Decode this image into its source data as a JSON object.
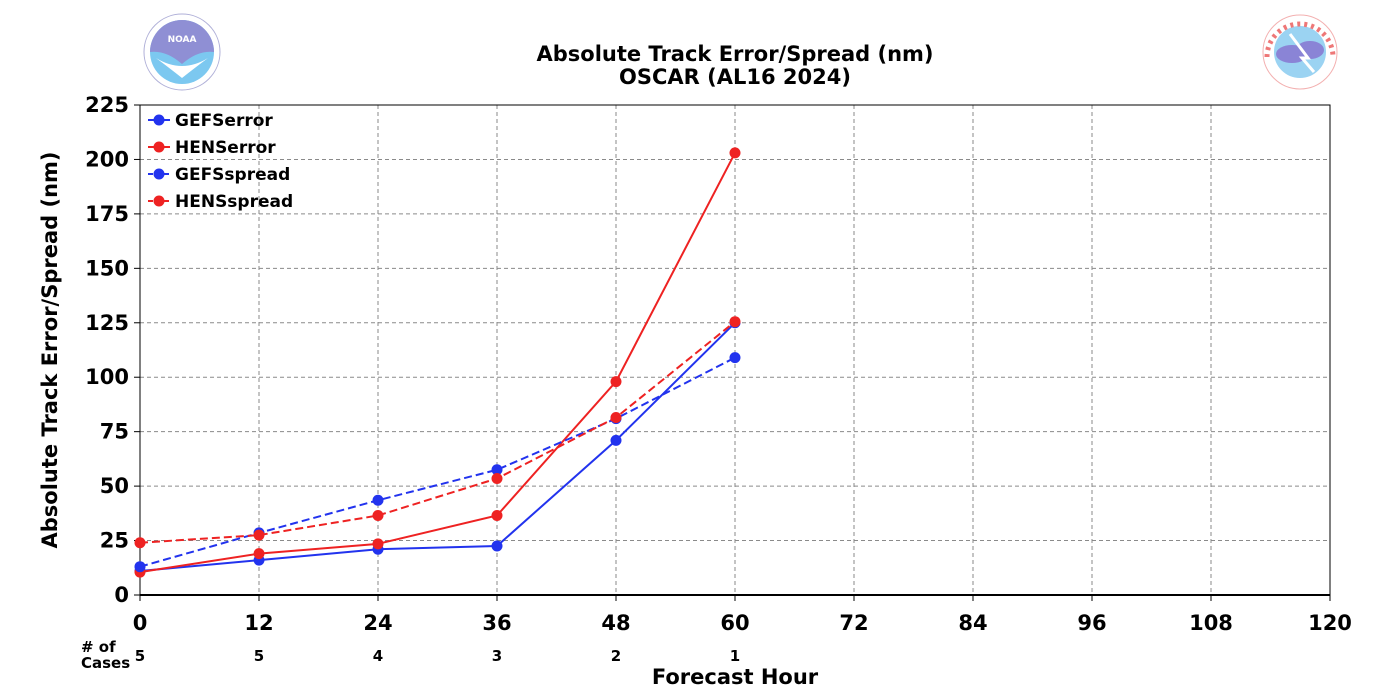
{
  "chart_data": {
    "type": "line",
    "title": "Absolute Track Error/Spread (nm)",
    "subtitle": "OSCAR (AL16 2024)",
    "xlabel": "Forecast Hour",
    "ylabel": "Absolute Track Error/Spread (nm)",
    "xlim": [
      0,
      120
    ],
    "ylim": [
      0,
      225
    ],
    "x_ticks": [
      "0",
      "12",
      "24",
      "36",
      "48",
      "60",
      "72",
      "84",
      "96",
      "108",
      "120"
    ],
    "y_ticks": [
      "0",
      "25",
      "50",
      "75",
      "100",
      "125",
      "150",
      "175",
      "200",
      "225"
    ],
    "grid": true,
    "legend_position": "top-left",
    "cases_label": "# of Cases",
    "cases_label_lines": [
      "# of",
      "Cases"
    ],
    "cases": [
      {
        "x": 0,
        "count": "5"
      },
      {
        "x": 12,
        "count": "5"
      },
      {
        "x": 24,
        "count": "4"
      },
      {
        "x": 36,
        "count": "3"
      },
      {
        "x": 48,
        "count": "2"
      },
      {
        "x": 60,
        "count": "1"
      }
    ],
    "x": [
      0,
      12,
      24,
      36,
      48,
      60
    ],
    "series": [
      {
        "name": "GEFSerror",
        "color": "#2233ee",
        "dash": "solid",
        "values": [
          11,
          16,
          21,
          22.5,
          71,
          125
        ]
      },
      {
        "name": "HENSerror",
        "color": "#ee2222",
        "dash": "solid",
        "values": [
          10.5,
          19,
          23.5,
          36.5,
          98,
          203
        ]
      },
      {
        "name": "GEFSspread",
        "color": "#2233ee",
        "dash": "dashed",
        "values": [
          13,
          28.5,
          43.5,
          57.5,
          81,
          109
        ]
      },
      {
        "name": "HENSspread",
        "color": "#ee2222",
        "dash": "dashed",
        "values": [
          24,
          27.5,
          36.5,
          53.5,
          81.5,
          125.5
        ]
      }
    ]
  },
  "logos": {
    "left": {
      "name": "noaa-logo",
      "text": "NOAA",
      "colors": {
        "top": "#8f8fd4",
        "bottom": "#7cc8f0"
      }
    },
    "right": {
      "name": "nws-logo",
      "text": "NATIONAL WEATHER SERVICE",
      "colors": {
        "ring": "#ee7777",
        "fill": "#9bd3f2",
        "cloud": "#8a84d6"
      }
    }
  }
}
